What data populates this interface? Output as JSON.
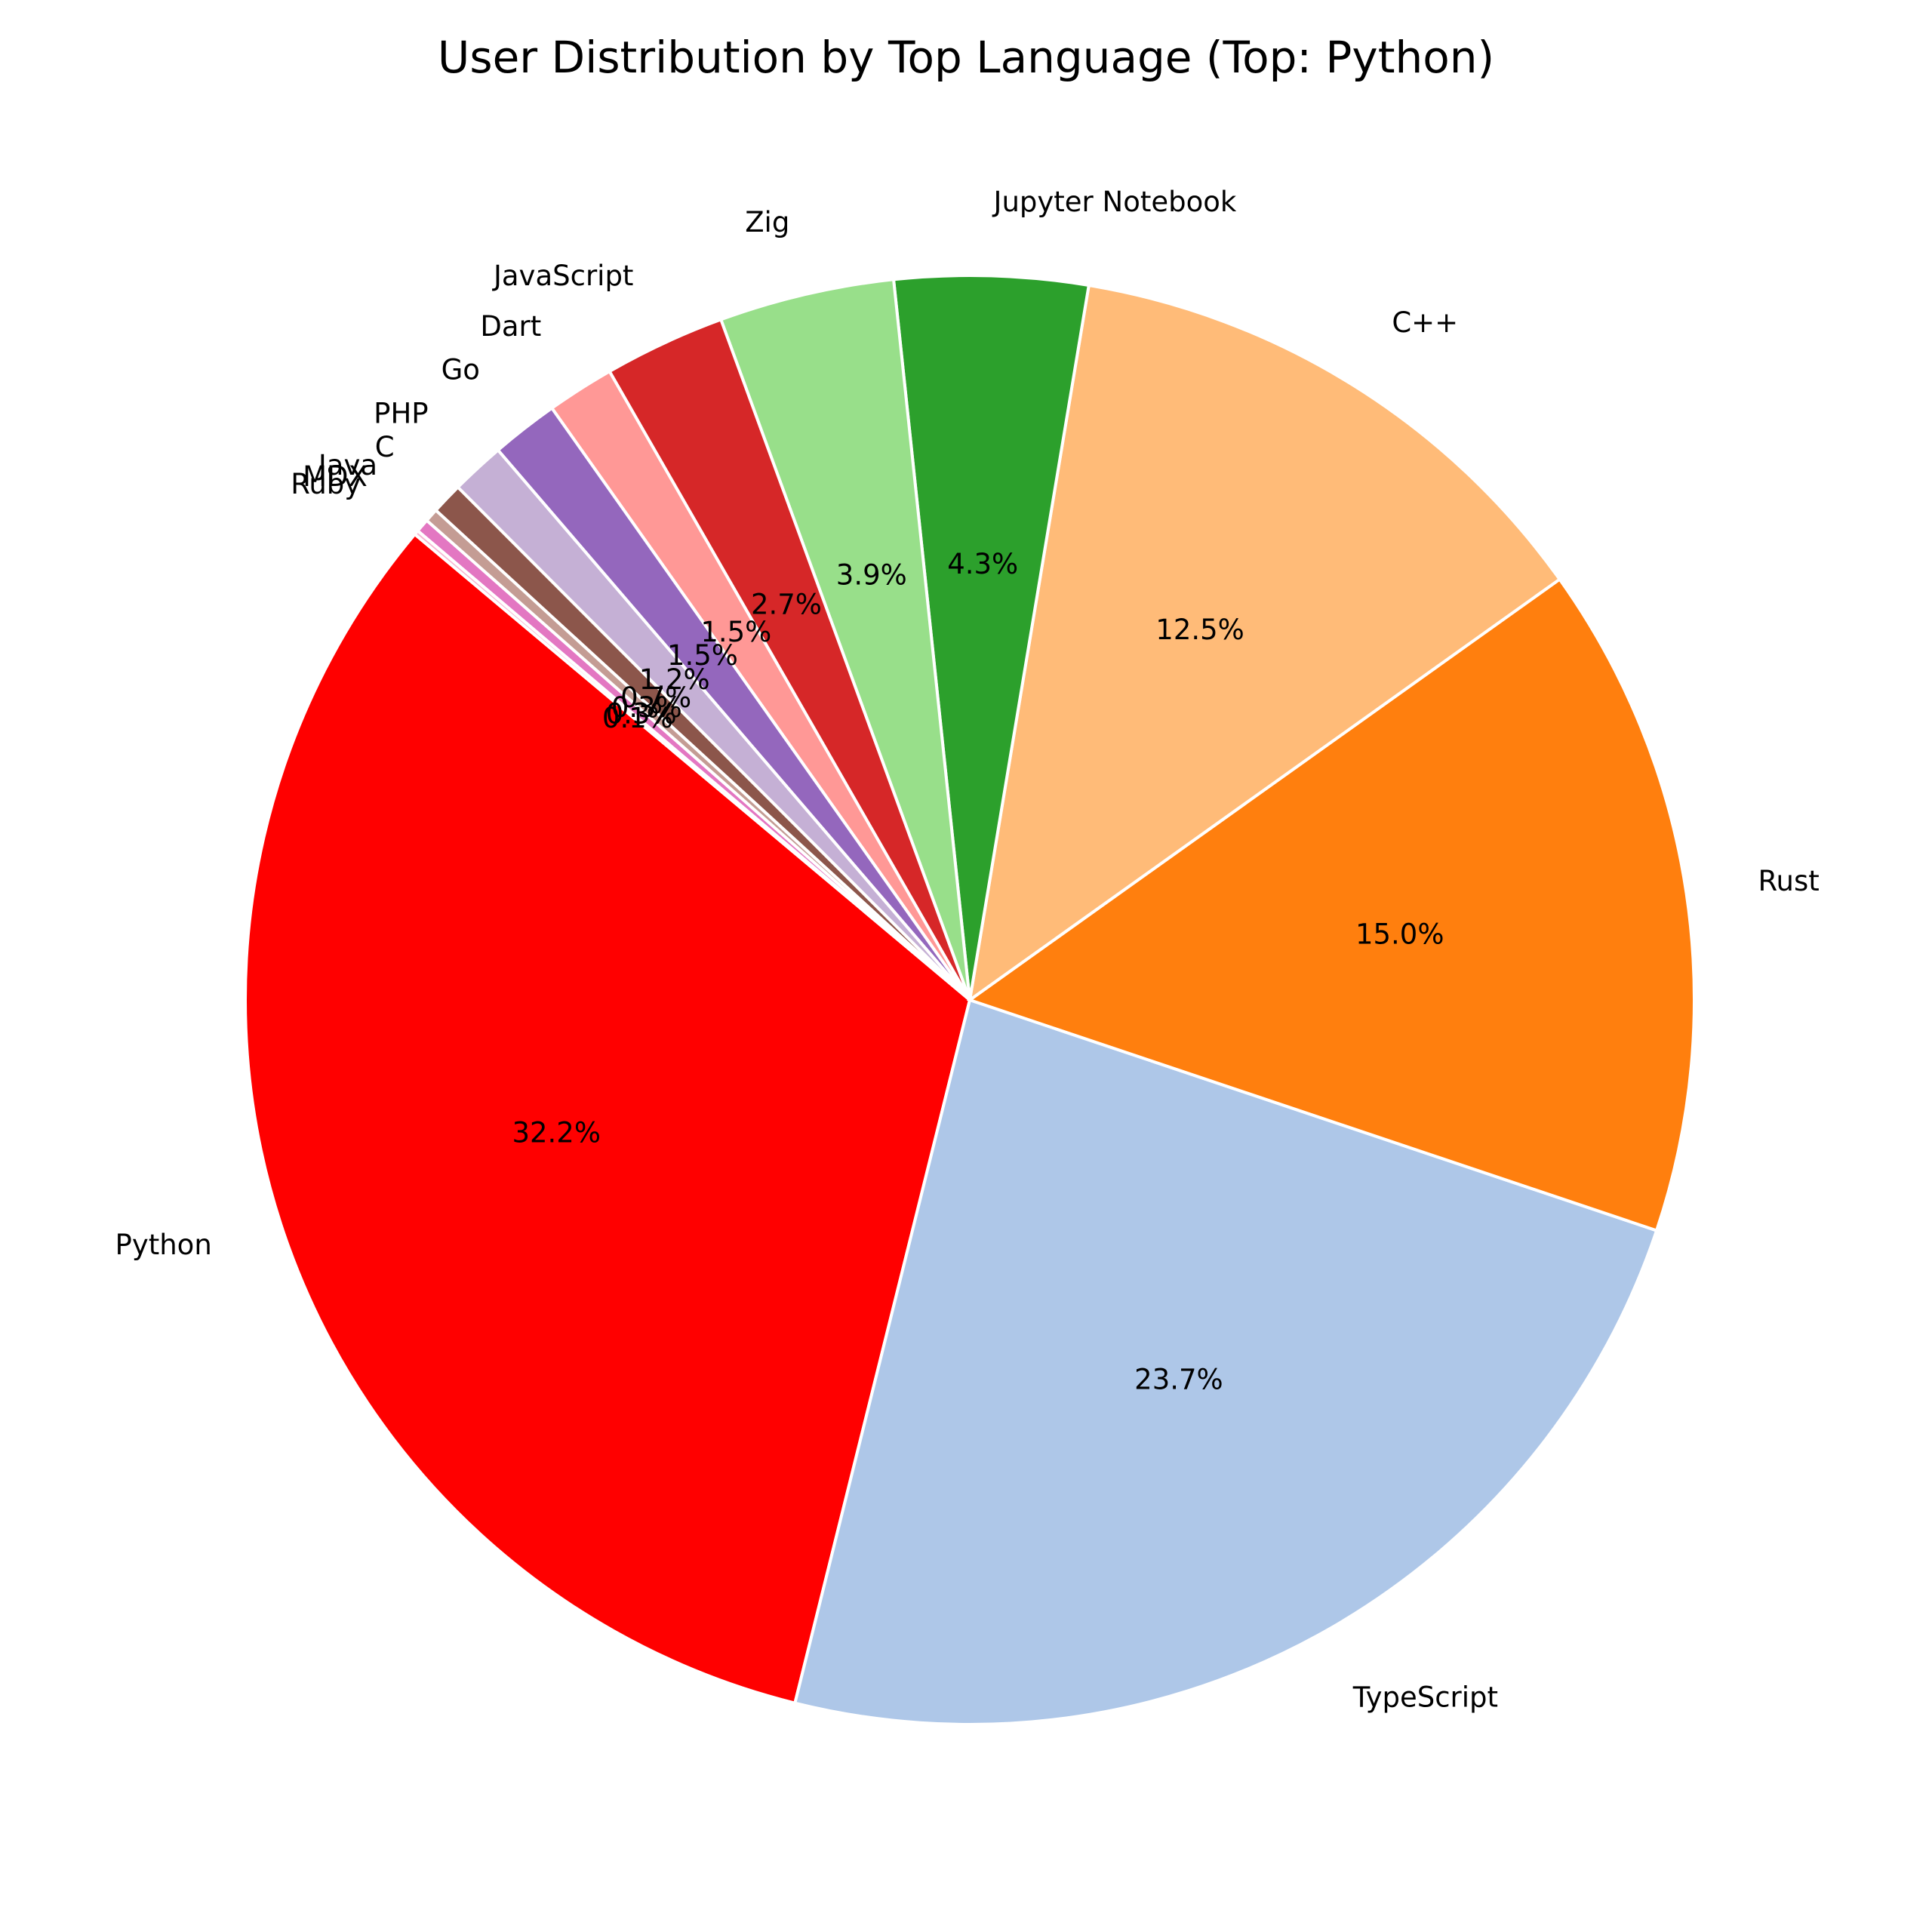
{
  "chart_data": {
    "type": "pie",
    "title": "User Distribution by Top Language (Top: Python)",
    "start_angle_deg": 140,
    "direction": "counterclockwise",
    "slices": [
      {
        "label": "Python",
        "value": 32.2,
        "pct_label": "32.2%",
        "color": "#ff0000"
      },
      {
        "label": "TypeScript",
        "value": 23.7,
        "pct_label": "23.7%",
        "color": "#aec7e8"
      },
      {
        "label": "Rust",
        "value": 15.0,
        "pct_label": "15.0%",
        "color": "#ff7f0e"
      },
      {
        "label": "C++",
        "value": 12.5,
        "pct_label": "12.5%",
        "color": "#ffbb78"
      },
      {
        "label": "Jupyter Notebook",
        "value": 4.3,
        "pct_label": "4.3%",
        "color": "#2ca02c"
      },
      {
        "label": "Zig",
        "value": 3.9,
        "pct_label": "3.9%",
        "color": "#98df8a"
      },
      {
        "label": "JavaScript",
        "value": 2.7,
        "pct_label": "2.7%",
        "color": "#d62728"
      },
      {
        "label": "Dart",
        "value": 1.5,
        "pct_label": "1.5%",
        "color": "#ff9896"
      },
      {
        "label": "Go",
        "value": 1.5,
        "pct_label": "1.5%",
        "color": "#9467bd"
      },
      {
        "label": "PHP",
        "value": 1.2,
        "pct_label": "1.2%",
        "color": "#c5b0d5"
      },
      {
        "label": "C",
        "value": 0.7,
        "pct_label": "0.7%",
        "color": "#8c564b"
      },
      {
        "label": "Java",
        "value": 0.3,
        "pct_label": "0.3%",
        "color": "#c49c94"
      },
      {
        "label": "MDX",
        "value": 0.3,
        "pct_label": "0.3%",
        "color": "#e377c2"
      },
      {
        "label": "Ruby",
        "value": 0.1,
        "pct_label": "0.1%",
        "color": "#f7b6d2"
      }
    ]
  }
}
